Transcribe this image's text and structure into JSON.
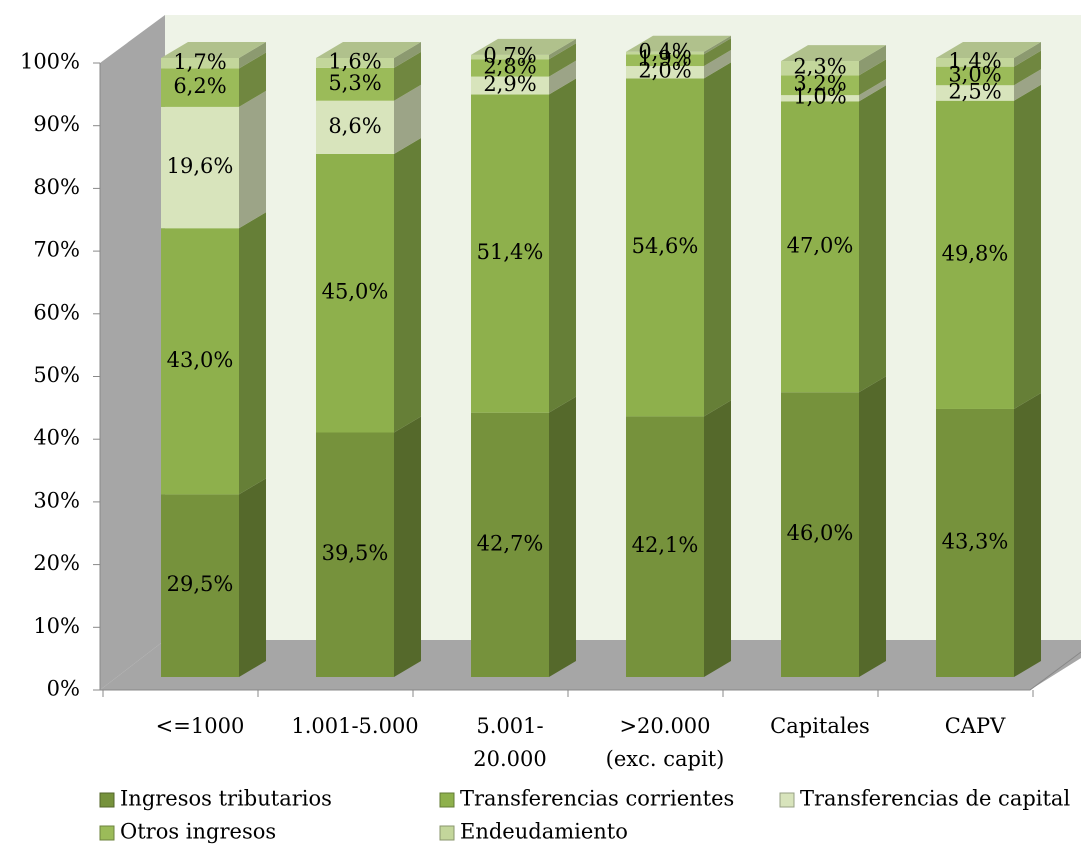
{
  "chart_data": {
    "type": "bar3d_stacked",
    "categories": [
      "<=1000",
      "1.001-5.000",
      "5.001-\n20.000",
      ">20.000\n(exc. capit)",
      "Capitales",
      "CAPV"
    ],
    "series": [
      {
        "name": "Ingresos tributarios",
        "color": "#76923c",
        "values": [
          29.5,
          39.5,
          42.7,
          42.1,
          46.0,
          43.3
        ],
        "value_labels": [
          "29,5%",
          "39,5%",
          "42,7%",
          "42,1%",
          "46,0%",
          "43,3%"
        ]
      },
      {
        "name": "Transferencias corrientes",
        "color": "#8eb04c",
        "values": [
          43.0,
          45.0,
          51.4,
          54.6,
          47.0,
          49.8
        ],
        "value_labels": [
          "43,0%",
          "45,0%",
          "51,4%",
          "54,6%",
          "47,0%",
          "49,8%"
        ]
      },
      {
        "name": "Transferencias de capital",
        "color": "#d8e4bc",
        "values": [
          19.6,
          8.6,
          2.9,
          2.0,
          1.0,
          2.5
        ],
        "value_labels": [
          "19,6%",
          "8,6%",
          "2,9%",
          "2,0%",
          "1,0%",
          "2,5%"
        ]
      },
      {
        "name": "Otros ingresos",
        "color": "#9bbb59",
        "values": [
          6.2,
          5.3,
          2.8,
          1.9,
          3.2,
          3.0
        ],
        "value_labels": [
          "6,2%",
          "5,3%",
          "2,8%",
          "1,9%",
          "3,2%",
          "3,0%"
        ]
      },
      {
        "name": "Endeudamiento",
        "color": "#c3d69b",
        "values": [
          1.7,
          1.6,
          0.7,
          0.4,
          2.3,
          1.4
        ],
        "value_labels": [
          "1,7%",
          "1,6%",
          "0,7%",
          "0,4%",
          "2,3%",
          "1,4%"
        ]
      }
    ],
    "ylim": [
      0,
      100
    ],
    "yticks": [
      {
        "value": 0,
        "label": "0%"
      },
      {
        "value": 10,
        "label": "10%"
      },
      {
        "value": 20,
        "label": "20%"
      },
      {
        "value": 30,
        "label": "30%"
      },
      {
        "value": 40,
        "label": "40%"
      },
      {
        "value": 50,
        "label": "50%"
      },
      {
        "value": 60,
        "label": "60%"
      },
      {
        "value": 70,
        "label": "70%"
      },
      {
        "value": 80,
        "label": "80%"
      },
      {
        "value": 90,
        "label": "90%"
      },
      {
        "value": 100,
        "label": "100%"
      }
    ]
  }
}
